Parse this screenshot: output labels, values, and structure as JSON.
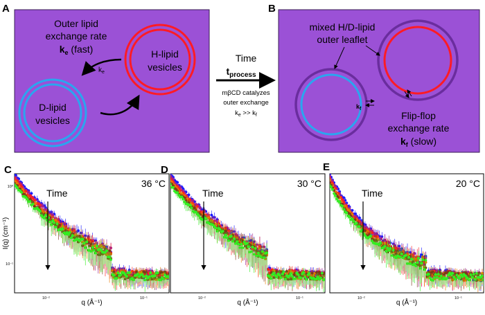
{
  "panel_labels": [
    "A",
    "B",
    "C",
    "D",
    "E"
  ],
  "panel_a": {
    "outer_exchange_line1": "Outer lipid",
    "outer_exchange_line2": "exchange rate",
    "ke_symbol": "k",
    "ke_sub": "e",
    "ke_suffix": " (fast)",
    "ke_arrow_label": "k",
    "ke_arrow_sub": "e",
    "h_vesicle_line1": "H-lipid",
    "h_vesicle_line2": "vesicles",
    "d_vesicle_line1": "D-lipid",
    "d_vesicle_line2": "vesicles",
    "colors": {
      "background": "#9b51d6",
      "h_ring": "#ff1b25",
      "d_ring": "#2aa6ef"
    }
  },
  "middle": {
    "time": "Time",
    "t_symbol": "t",
    "t_sub": "process",
    "catalyst_line1": "mβCD catalyzes",
    "catalyst_line2": "outer exchange",
    "rate_ineq_k1": "k",
    "rate_ineq_sub1": "e",
    "rate_ineq_op": " >> k",
    "rate_ineq_sub2": "f"
  },
  "panel_b": {
    "mixed_line1": "mixed H/D-lipid",
    "mixed_line2": "outer leaflet",
    "kf_label": "k",
    "kf_sub": "f",
    "flip_line1": "Flip-flop",
    "flip_line2": "exchange rate",
    "kf_symbol": "k",
    "kf_symbol_sub": "f",
    "kf_suffix": " (slow)",
    "colors": {
      "outer_ring": "#6a2d9e",
      "inner_blue": "#2aa6ef",
      "inner_red": "#ff1b25"
    }
  },
  "plots": [
    {
      "label": "C",
      "temperature": "36 °C",
      "time": "Time",
      "ylabel": "I(q) (cm⁻¹)",
      "xlabel": "q (Å⁻¹)",
      "xtick_left": "10⁻²",
      "xtick_right": "10⁻¹",
      "ytick_top": "10⁰",
      "ytick_bottom": "10⁻¹",
      "decay": 0.55,
      "bump": 1.0
    },
    {
      "label": "D",
      "temperature": "30 °C",
      "time": "Time",
      "ylabel": "",
      "xlabel": "q (Å⁻¹)",
      "xtick_left": "10⁻²",
      "xtick_right": "10⁻¹",
      "ytick_top": "",
      "ytick_bottom": "",
      "decay": 0.55,
      "bump": 1.0
    },
    {
      "label": "E",
      "temperature": "20 °C",
      "time": "Time",
      "ylabel": "",
      "xlabel": "q (Å⁻¹)",
      "xtick_left": "10⁻²",
      "xtick_right": "10⁻¹",
      "ytick_top": "",
      "ytick_bottom": "",
      "decay": 1.0,
      "bump": 0.6
    }
  ],
  "series_colors": [
    "#1b1bff",
    "#a0208f",
    "#ff2020",
    "#e87a00",
    "#7a3b1a",
    "#33ee22"
  ]
}
